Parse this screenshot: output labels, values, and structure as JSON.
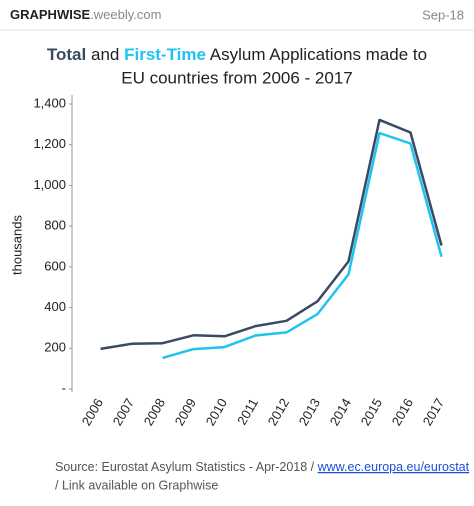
{
  "header": {
    "brand": "GRAPHWISE",
    "brand_domain": ".weebly.com",
    "date": "Sep-18"
  },
  "chart_data": {
    "type": "line",
    "title": [
      "Total",
      "and",
      "First-Time",
      "Asylum Applications made to",
      "EU countries from 2006 - 2017"
    ],
    "y_label": "thousands",
    "categories": [
      "2006",
      "2007",
      "2008",
      "2009",
      "2010",
      "2011",
      "2012",
      "2013",
      "2014",
      "2015",
      "2016",
      "2017"
    ],
    "series": [
      {
        "name": "Total",
        "color": "#3a4a63",
        "values": [
          197,
          222,
          225,
          264,
          259,
          309,
          335,
          431,
          627,
          1322,
          1260,
          705
        ]
      },
      {
        "name": "First-Time",
        "color": "#1ec3ef",
        "values": [
          null,
          null,
          153,
          196,
          206,
          263,
          278,
          368,
          563,
          1257,
          1206,
          650
        ]
      }
    ],
    "ylim": [
      0,
      1400
    ],
    "yticks": [
      {
        "value": 0,
        "label": "-"
      },
      200,
      400,
      600,
      800,
      {
        "value": 1000,
        "label": "1,000"
      },
      {
        "value": 1200,
        "label": "1,200"
      },
      {
        "value": 1400,
        "label": "1,400"
      }
    ],
    "source": "Source: Eurostat Asylum Statistics - Apr-2018 /",
    "source_link": "www.ec.europa.eu/eurostat",
    "source_note": "/ Link available on Graphwise"
  }
}
